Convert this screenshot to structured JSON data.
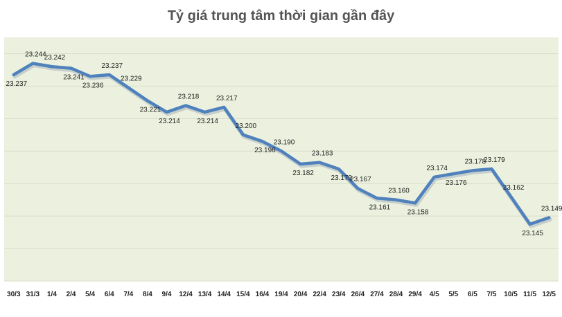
{
  "chart_data": {
    "type": "line",
    "title": "Tỷ giá trung tâm thời gian gần đây",
    "xlabel": "",
    "ylabel": "",
    "categories": [
      "30/3",
      "31/3",
      "1/4",
      "2/4",
      "5/4",
      "6/4",
      "7/4",
      "8/4",
      "9/4",
      "12/4",
      "13/4",
      "14/4",
      "15/4",
      "16/4",
      "19/4",
      "20/4",
      "22/4",
      "23/4",
      "26/4",
      "27/4",
      "28/4",
      "29/4",
      "4/5",
      "5/5",
      "6/5",
      "7/5",
      "10/5",
      "11/5",
      "12/5"
    ],
    "values": [
      23237,
      23244,
      23242,
      23241,
      23236,
      23237,
      23229,
      23221,
      23214,
      23218,
      23214,
      23217,
      23200,
      23196,
      23190,
      23182,
      23183,
      23179,
      23167,
      23161,
      23160,
      23158,
      23174,
      23176,
      23178,
      23179,
      23162,
      23145,
      23149
    ],
    "data_labels": [
      "23.237",
      "23.244",
      "23.242",
      "23.241",
      "23.236",
      "23.237",
      "23.229",
      "23.221",
      "23.214",
      "23.218",
      "23.214",
      "23.217",
      "23.200",
      "23.196",
      "23.190",
      "23.182",
      "23.183",
      "23.179",
      "23.167",
      "23.161",
      "23.160",
      "23.158",
      "23.174",
      "23.176",
      "23.178",
      "23.179",
      "23.162",
      "23.145",
      "23.149"
    ],
    "ylim": [
      23110,
      23260
    ],
    "grid": true,
    "legend": "none",
    "colors": {
      "line": "#4F81BD",
      "plot_bg": "#EBF1DE",
      "grid": "#D9DEC8"
    }
  }
}
